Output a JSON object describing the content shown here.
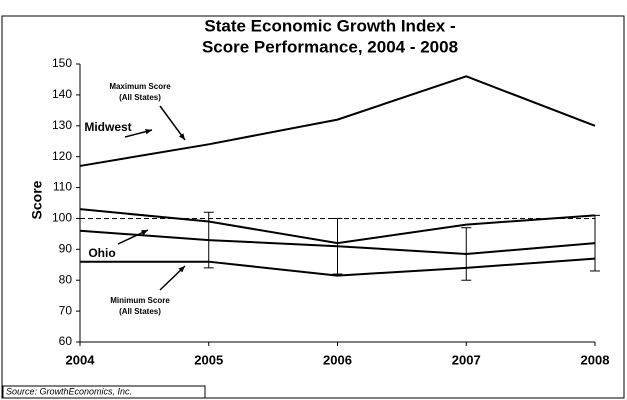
{
  "chart_data": {
    "type": "line",
    "title": [
      "State Economic Growth Index -",
      "Score Performance, 2004 - 2008"
    ],
    "y_label": "Score",
    "source": "Source: GrowthEconomics, Inc.",
    "x": [
      2004,
      2005,
      2006,
      2007,
      2008
    ],
    "xlim": [
      2004,
      2008
    ],
    "xticks": [
      2004,
      2005,
      2006,
      2007,
      2008
    ],
    "ylim": [
      60,
      150
    ],
    "yticks": [
      60,
      70,
      80,
      90,
      100,
      110,
      120,
      130,
      140,
      150
    ],
    "reference_line": 100,
    "series": [
      {
        "name": "Maximum Score",
        "note": "(All States)",
        "color": "#000000",
        "values": [
          117,
          124,
          132,
          146,
          130
        ]
      },
      {
        "name": "Midwest",
        "color": "#000000",
        "values": [
          103,
          99,
          92,
          98,
          101
        ]
      },
      {
        "name": "Ohio",
        "color": "#000000",
        "values": [
          96,
          93,
          91,
          88.5,
          92
        ]
      },
      {
        "name": "Minimum Score",
        "note": "(All States)",
        "color": "#000000",
        "values": [
          86,
          86,
          81.5,
          84,
          87
        ]
      }
    ],
    "range_bars": {
      "x": [
        2005,
        2006,
        2007,
        2008
      ],
      "low": [
        84,
        82,
        80,
        83
      ],
      "high": [
        102,
        100,
        97,
        101
      ]
    }
  }
}
